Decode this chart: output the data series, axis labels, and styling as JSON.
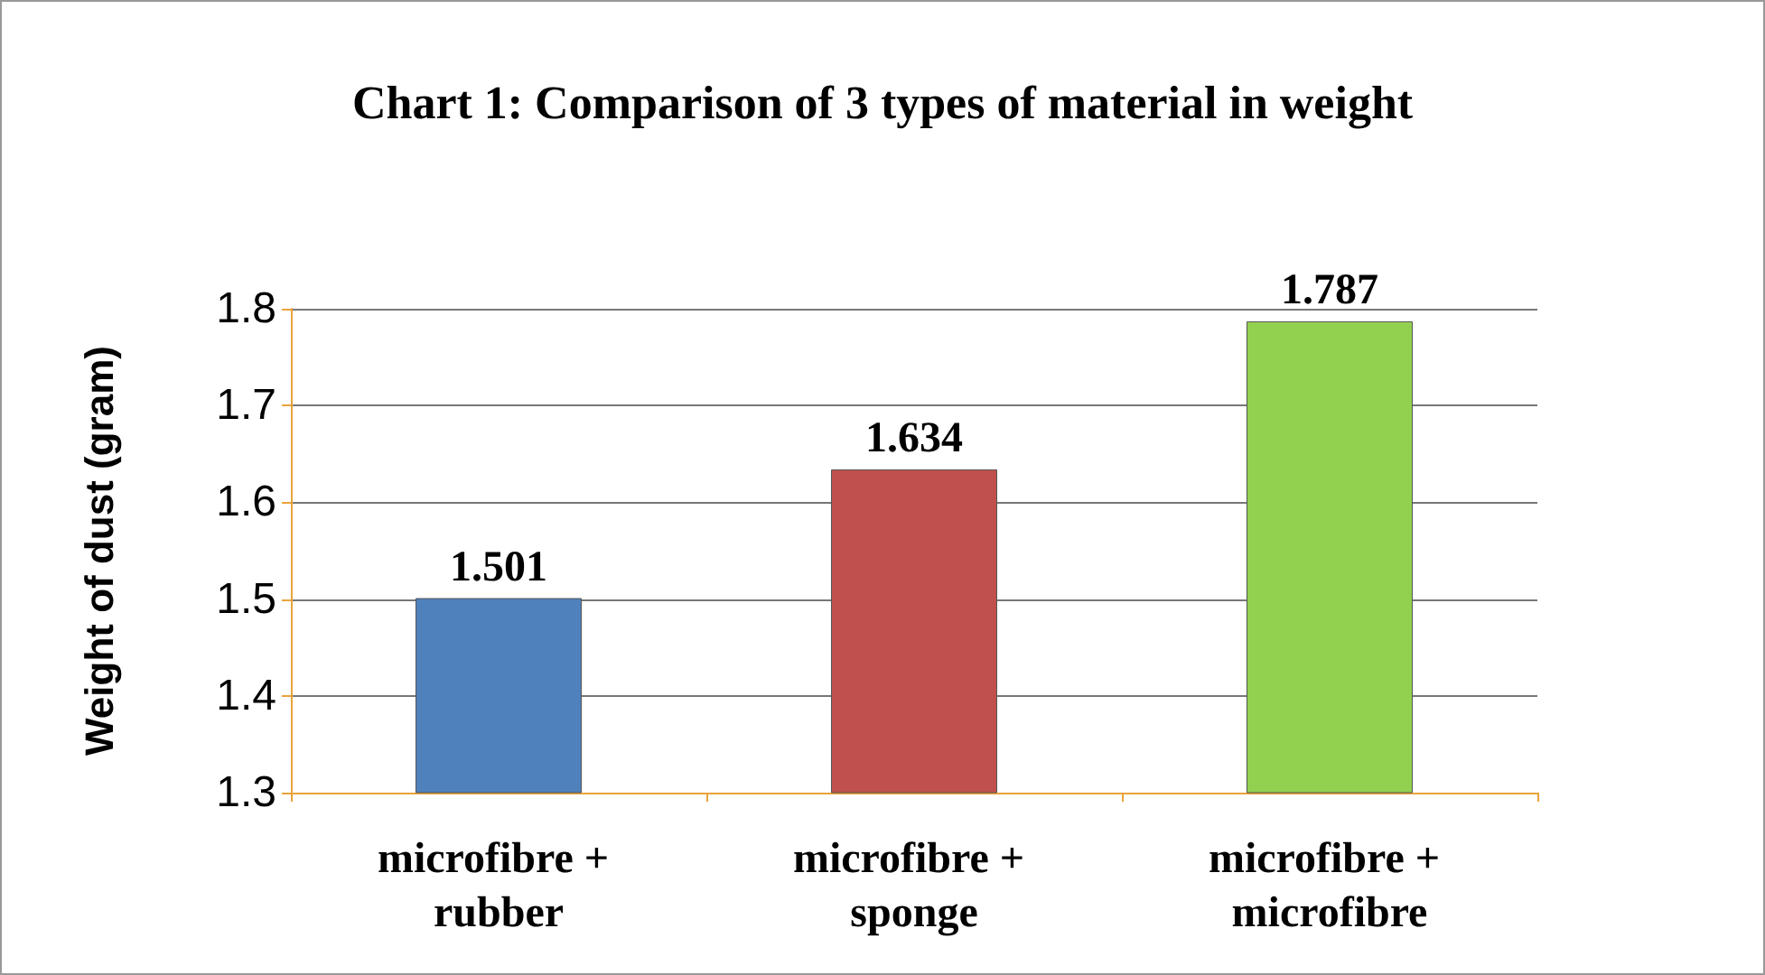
{
  "chart_data": {
    "type": "bar",
    "title": "Chart 1: Comparison of 3 types of material in weight",
    "ylabel": "Weight of dust (gram)",
    "categories": [
      "microfibre + rubber",
      "microfibre + sponge",
      "microfibre + microfibre"
    ],
    "values": [
      1.501,
      1.634,
      1.787
    ],
    "colors": [
      "#4f81bd",
      "#c0504d",
      "#92d050"
    ],
    "ylim": [
      1.3,
      1.8
    ],
    "yticks": [
      1.3,
      1.4,
      1.5,
      1.6,
      1.7,
      1.8
    ],
    "grid": "y",
    "data_labels": true
  }
}
